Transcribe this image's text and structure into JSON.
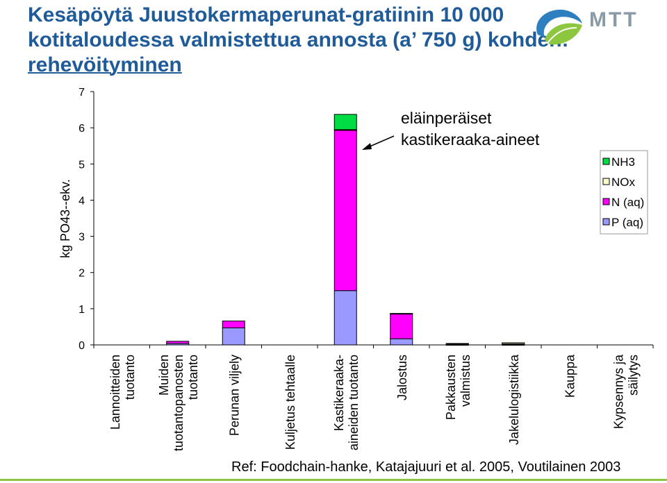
{
  "title": {
    "line1": "Kesäpöytä Juustokermaperunat-gratiinin 10 000",
    "line2": "kotitaloudessa valmistettua annosta (a’ 750 g) kohden:",
    "line3": "rehevöityminen"
  },
  "logo": {
    "text": "MTT",
    "icon": "leaf-swirl-logo-icon"
  },
  "annotation": {
    "line1": "eläinperäiset",
    "line2": "kastikeraaka-aineet"
  },
  "reference": "Ref: Foodchain-hanke, Katajajuuri et al. 2005, Voutilainen 2003",
  "chart_data": {
    "type": "bar",
    "stacked": true,
    "title": "",
    "xlabel": "",
    "ylabel": "kg PO43--ekv.",
    "ylim": [
      0,
      7
    ],
    "yticks": [
      0,
      1,
      2,
      3,
      4,
      5,
      6,
      7
    ],
    "grid": false,
    "legend_position": "right",
    "categories": [
      [
        "Lannoitteiden",
        "tuotanto"
      ],
      [
        "Muiden",
        "tuotantopanosten",
        "tuotanto"
      ],
      [
        "Perunan viljely"
      ],
      [
        "Kuljetus tehtaalle"
      ],
      [
        "Kastikeraaka-",
        "aineiden tuotanto"
      ],
      [
        "Jalostus"
      ],
      [
        "Pakkausten",
        "valmistus"
      ],
      [
        "Jakelulogistiikka"
      ],
      [
        "Kauppa"
      ],
      [
        "Kypsennys ja",
        "säilytys"
      ]
    ],
    "series": [
      {
        "name": "P (aq)",
        "color": "#9999ff",
        "values": [
          0,
          0.04,
          0.47,
          0,
          1.5,
          0.17,
          0.01,
          0.01,
          0,
          0
        ]
      },
      {
        "name": "N (aq)",
        "color": "#ff00ff",
        "values": [
          0,
          0.06,
          0.19,
          0,
          4.43,
          0.69,
          0.02,
          0.02,
          0,
          0
        ]
      },
      {
        "name": "NOx",
        "color": "#ffffcc",
        "values": [
          0,
          0,
          0,
          0,
          0.02,
          0.01,
          0.01,
          0.03,
          0,
          0
        ]
      },
      {
        "name": "NH3",
        "color": "#00dd44",
        "values": [
          0,
          0,
          0,
          0,
          0.42,
          0,
          0,
          0,
          0,
          0
        ]
      }
    ],
    "legend_order": [
      "NH3",
      "NOx",
      "N (aq)",
      "P (aq)"
    ]
  }
}
